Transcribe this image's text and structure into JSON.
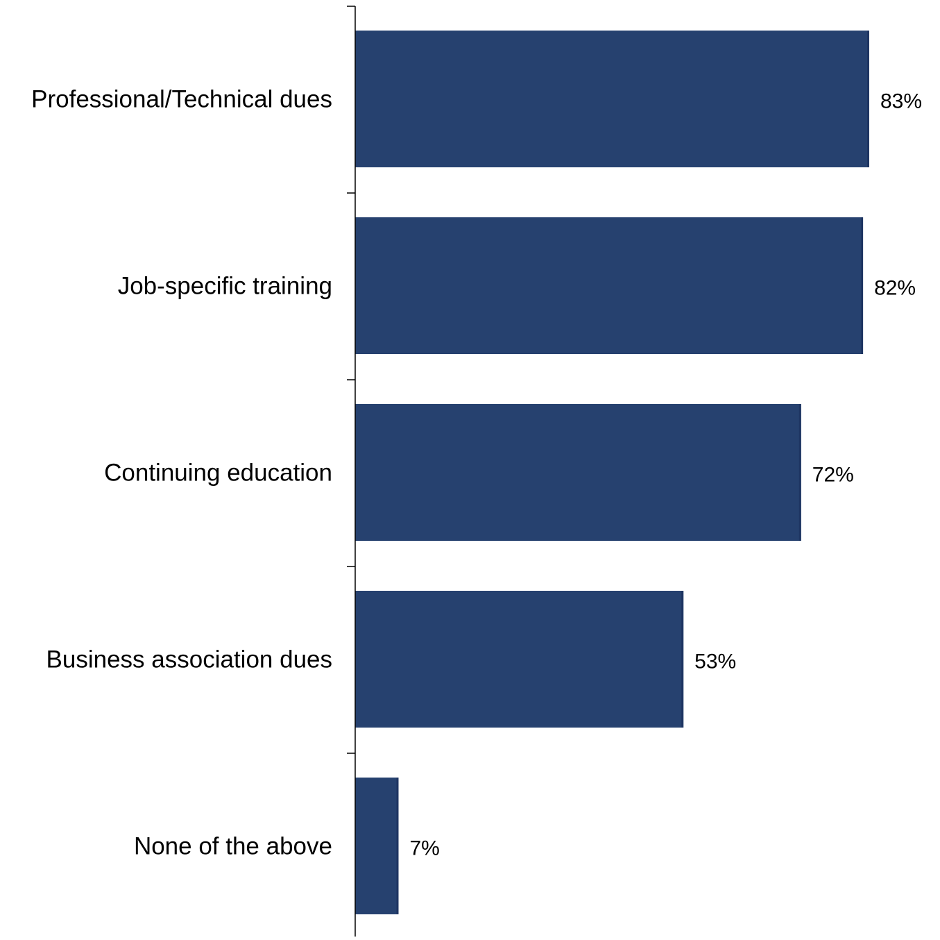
{
  "chart_data": {
    "type": "bar",
    "orientation": "horizontal",
    "categories": [
      "Professional/Technical dues",
      "Job-specific training",
      "Continuing education",
      "Business association dues",
      "None of the above"
    ],
    "values": [
      83,
      82,
      72,
      53,
      7
    ],
    "value_labels": [
      "83%",
      "82%",
      "72%",
      "53%",
      "7%"
    ],
    "title": "",
    "xlabel": "",
    "ylabel": "",
    "xlim": [
      0,
      100
    ],
    "grid": false,
    "legend": "none",
    "bar_color": "#26416F"
  }
}
